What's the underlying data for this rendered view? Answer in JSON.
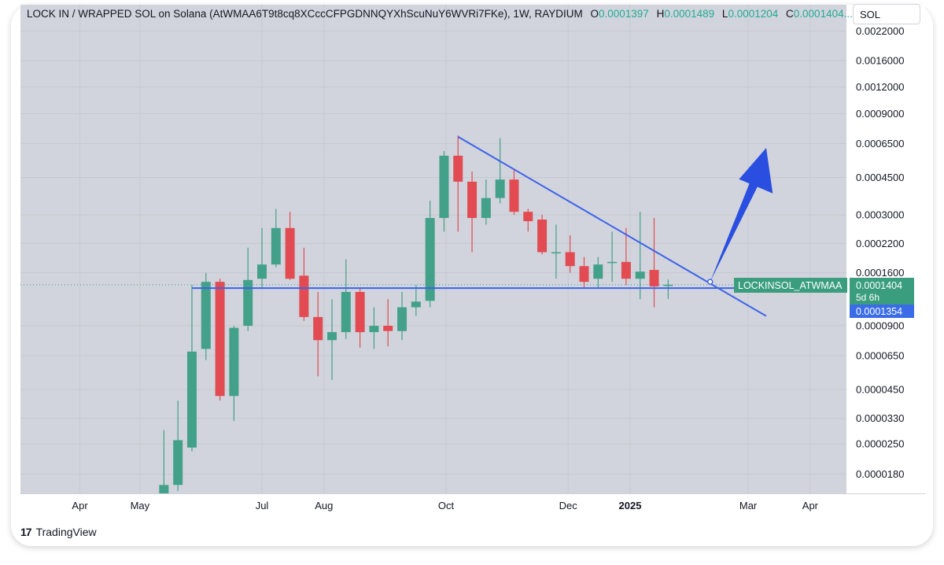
{
  "header": {
    "pair": "LOCK IN / WRAPPED SOL on Solana (AtWMAA6T9t8cq8XCccCFPGDNNQYXhScuNuY6WVRi7FKe), 1W, RAYDIUM",
    "o_label": "O",
    "o_value": "0.0001397",
    "h_label": "H",
    "h_value": "0.0001489",
    "l_label": "L",
    "l_value": "0.0001204",
    "c_label": "C",
    "c_value": "0.0001404..."
  },
  "symbol_box": "SOL",
  "brand": {
    "logo": "17",
    "name": "TradingView"
  },
  "colors": {
    "up": "#44a189",
    "down": "#e24b52",
    "trendline": "#3d63e8",
    "arrow": "#2a4fe0",
    "plot_bg": "#d1d4dc",
    "label_green": "#3a9d7e",
    "label_blue": "#3a6ce8"
  },
  "price_labels": {
    "series_name": "LOCKINSOL_ATWMAA",
    "last_price": "0.0001404",
    "countdown": "5d 6h",
    "line_price": "0.0001354"
  },
  "chart_data": {
    "type": "candlestick",
    "scale": "log",
    "interval": "1W",
    "ylim": [
      1.6e-05,
      0.0024
    ],
    "y_ticks": [
      "0.0022000",
      "0.0016000",
      "0.0012000",
      "0.0009000",
      "0.0006500",
      "0.0004500",
      "0.0003000",
      "0.0002200",
      "0.0001600",
      "0.0000900",
      "0.0000650",
      "0.0000450",
      "0.0000330",
      "0.0000250",
      "0.0000180"
    ],
    "x_ticks": [
      {
        "label": "Apr",
        "date": "2024-04-01",
        "bold": false
      },
      {
        "label": "May",
        "date": "2024-05-01",
        "bold": false
      },
      {
        "label": "Jul",
        "date": "2024-07-01",
        "bold": false
      },
      {
        "label": "Aug",
        "date": "2024-08-01",
        "bold": false
      },
      {
        "label": "Oct",
        "date": "2024-10-01",
        "bold": false
      },
      {
        "label": "Dec",
        "date": "2024-12-01",
        "bold": false
      },
      {
        "label": "2025",
        "date": "2025-01-01",
        "bold": true
      },
      {
        "label": "Mar",
        "date": "2025-03-01",
        "bold": false
      },
      {
        "label": "Apr",
        "date": "2025-04-01",
        "bold": false
      }
    ],
    "candles": [
      {
        "date": "2024-05-13",
        "o": 1e-05,
        "h": 2.9e-05,
        "l": 9e-06,
        "c": 1.6e-05
      },
      {
        "date": "2024-05-20",
        "o": 1.6e-05,
        "h": 4e-05,
        "l": 1.5e-05,
        "c": 2.6e-05
      },
      {
        "date": "2024-05-27",
        "o": 2.4e-05,
        "h": 0.00014,
        "l": 2.3e-05,
        "c": 6.8e-05
      },
      {
        "date": "2024-06-03",
        "o": 7e-05,
        "h": 0.00016,
        "l": 6.2e-05,
        "c": 0.000145
      },
      {
        "date": "2024-06-10",
        "o": 0.000145,
        "h": 0.00015,
        "l": 4e-05,
        "c": 4.2e-05
      },
      {
        "date": "2024-06-17",
        "o": 4.2e-05,
        "h": 9e-05,
        "l": 3.2e-05,
        "c": 8.8e-05
      },
      {
        "date": "2024-06-24",
        "o": 9e-05,
        "h": 0.00021,
        "l": 8.5e-05,
        "c": 0.000148
      },
      {
        "date": "2024-07-01",
        "o": 0.00015,
        "h": 0.00026,
        "l": 0.000135,
        "c": 0.000175
      },
      {
        "date": "2024-07-08",
        "o": 0.000175,
        "h": 0.00032,
        "l": 0.00017,
        "c": 0.00026
      },
      {
        "date": "2024-07-15",
        "o": 0.00026,
        "h": 0.00031,
        "l": 0.000148,
        "c": 0.00015
      },
      {
        "date": "2024-07-22",
        "o": 0.000155,
        "h": 0.00021,
        "l": 9.5e-05,
        "c": 9.9e-05
      },
      {
        "date": "2024-07-29",
        "o": 9.9e-05,
        "h": 0.00013,
        "l": 5.2e-05,
        "c": 7.7e-05
      },
      {
        "date": "2024-08-05",
        "o": 7.7e-05,
        "h": 0.00012,
        "l": 5e-05,
        "c": 8.4e-05
      },
      {
        "date": "2024-08-12",
        "o": 8.4e-05,
        "h": 0.000185,
        "l": 7.8e-05,
        "c": 0.00013
      },
      {
        "date": "2024-08-19",
        "o": 0.00013,
        "h": 0.000135,
        "l": 7.1e-05,
        "c": 8.4e-05
      },
      {
        "date": "2024-08-26",
        "o": 8.4e-05,
        "h": 0.00011,
        "l": 7e-05,
        "c": 9e-05
      },
      {
        "date": "2024-09-02",
        "o": 9e-05,
        "h": 0.00012,
        "l": 7.2e-05,
        "c": 8.5e-05
      },
      {
        "date": "2024-09-09",
        "o": 8.5e-05,
        "h": 0.00013,
        "l": 7.7e-05,
        "c": 0.00011
      },
      {
        "date": "2024-09-16",
        "o": 0.00011,
        "h": 0.00014,
        "l": 0.0001,
        "c": 0.000117
      },
      {
        "date": "2024-09-23",
        "o": 0.000118,
        "h": 0.00035,
        "l": 0.00011,
        "c": 0.00029
      },
      {
        "date": "2024-09-30",
        "o": 0.00029,
        "h": 0.0006,
        "l": 0.00025,
        "c": 0.00057
      },
      {
        "date": "2024-10-07",
        "o": 0.00057,
        "h": 0.00071,
        "l": 0.00025,
        "c": 0.00043
      },
      {
        "date": "2024-10-14",
        "o": 0.00043,
        "h": 0.00048,
        "l": 0.0002,
        "c": 0.00029
      },
      {
        "date": "2024-10-21",
        "o": 0.00029,
        "h": 0.00044,
        "l": 0.00027,
        "c": 0.00036
      },
      {
        "date": "2024-10-28",
        "o": 0.00036,
        "h": 0.00069,
        "l": 0.00034,
        "c": 0.00044
      },
      {
        "date": "2024-11-04",
        "o": 0.00044,
        "h": 0.00049,
        "l": 0.0003,
        "c": 0.00031
      },
      {
        "date": "2024-11-11",
        "o": 0.00031,
        "h": 0.00032,
        "l": 0.00025,
        "c": 0.00028
      },
      {
        "date": "2024-11-18",
        "o": 0.000285,
        "h": 0.0003,
        "l": 0.000195,
        "c": 0.0002
      },
      {
        "date": "2024-11-25",
        "o": 0.0002,
        "h": 0.00027,
        "l": 0.00015,
        "c": 0.0002
      },
      {
        "date": "2024-12-02",
        "o": 0.0002,
        "h": 0.00024,
        "l": 0.00016,
        "c": 0.000172
      },
      {
        "date": "2024-12-09",
        "o": 0.000172,
        "h": 0.00019,
        "l": 0.000135,
        "c": 0.000145
      },
      {
        "date": "2024-12-16",
        "o": 0.00015,
        "h": 0.00019,
        "l": 0.000135,
        "c": 0.000175
      },
      {
        "date": "2024-12-23",
        "o": 0.000178,
        "h": 0.00025,
        "l": 0.000145,
        "c": 0.00018
      },
      {
        "date": "2024-12-30",
        "o": 0.00018,
        "h": 0.00026,
        "l": 0.00014,
        "c": 0.00015
      },
      {
        "date": "2025-01-06",
        "o": 0.00015,
        "h": 0.00031,
        "l": 0.00012,
        "c": 0.000162
      },
      {
        "date": "2025-01-13",
        "o": 0.000165,
        "h": 0.00029,
        "l": 0.00011,
        "c": 0.000138
      },
      {
        "date": "2025-01-20",
        "o": 0.0001397,
        "h": 0.0001489,
        "l": 0.0001204,
        "c": 0.0001404
      }
    ],
    "annotations": {
      "horizontal_line": {
        "price": 0.0001354,
        "from": "2024-05-27",
        "to": "2025-02-24"
      },
      "trendline": {
        "from": {
          "date": "2024-10-07",
          "price": 0.0007
        },
        "to": {
          "date": "2025-03-10",
          "price": 0.0001
        }
      },
      "arrow": {
        "from": {
          "date": "2025-02-10",
          "price": 0.000145
        },
        "to": {
          "date": "2025-03-10",
          "price": 0.00062
        }
      }
    }
  }
}
